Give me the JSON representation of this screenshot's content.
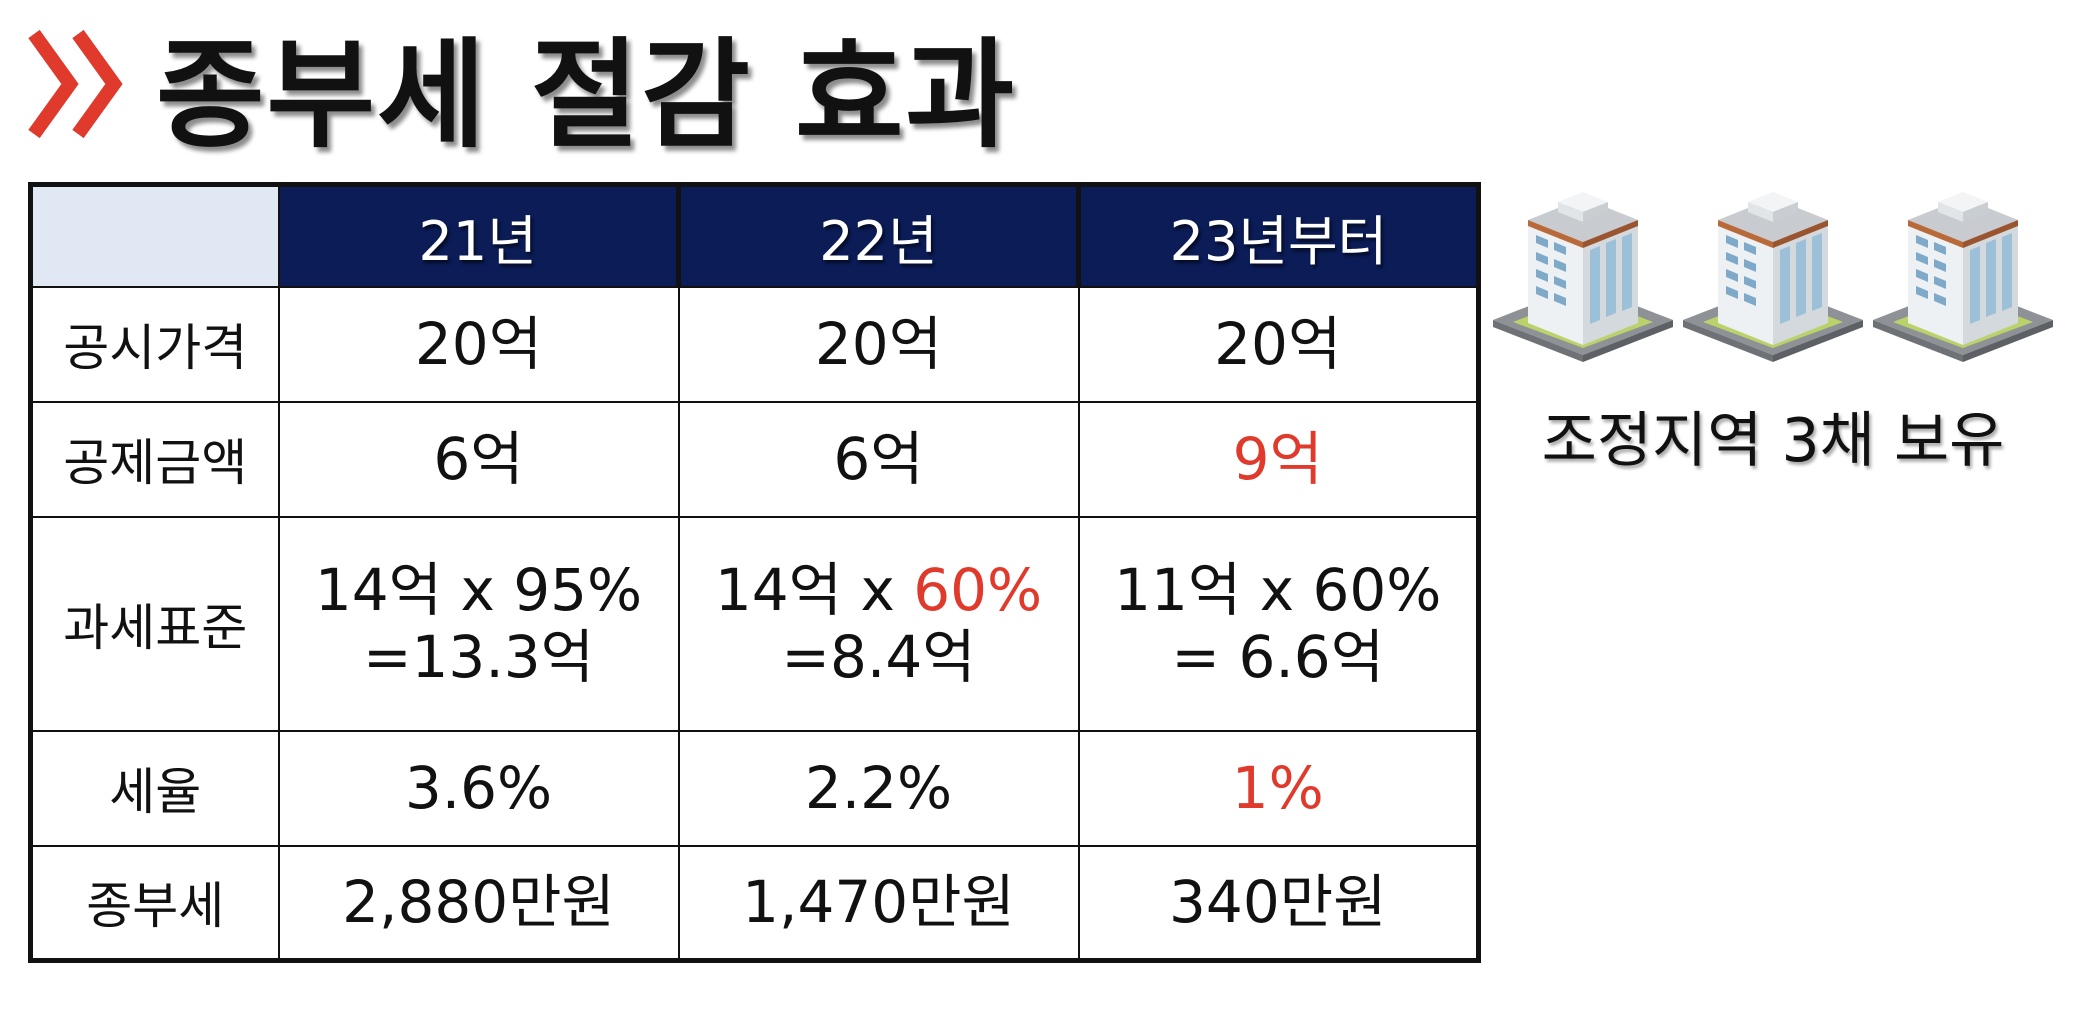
{
  "title": "종부세 절감 효과",
  "colors": {
    "accent": "#e03a2c",
    "header_bg": "#0b1c57",
    "corner_bg": "#dfe8f3"
  },
  "icons": [
    "chevron-double-right-icon",
    "apartment-building-icon"
  ],
  "table": {
    "headers": [
      "",
      "21년",
      "22년",
      "23년부터"
    ],
    "rows": [
      {
        "label": "공시가격",
        "cells": [
          [
            "20억",
            ""
          ],
          [
            "20억",
            ""
          ],
          [
            "20억",
            ""
          ]
        ]
      },
      {
        "label": "공제금액",
        "cells": [
          [
            "6억",
            ""
          ],
          [
            "6억",
            ""
          ],
          [
            "",
            "9억"
          ]
        ]
      },
      {
        "label": "과세표준",
        "cells": [
          {
            "a": "14억 x 95%",
            "a_red": "",
            "b": "=13.3억"
          },
          {
            "a": "14억 x ",
            "a_red": "60%",
            "b": "=8.4억"
          },
          {
            "a": "11억 x 60%",
            "a_red": "",
            "b": "= 6.6억"
          }
        ]
      },
      {
        "label": "세율",
        "cells": [
          [
            "3.6%",
            ""
          ],
          [
            "2.2%",
            ""
          ],
          [
            "",
            "1%"
          ]
        ]
      },
      {
        "label": "종부세",
        "cells": [
          [
            "2,880만원",
            ""
          ],
          [
            "1,470만원",
            ""
          ],
          [
            "340만원",
            ""
          ]
        ]
      }
    ]
  },
  "side": {
    "caption": "조정지역 3채 보유",
    "building_count": 3
  }
}
